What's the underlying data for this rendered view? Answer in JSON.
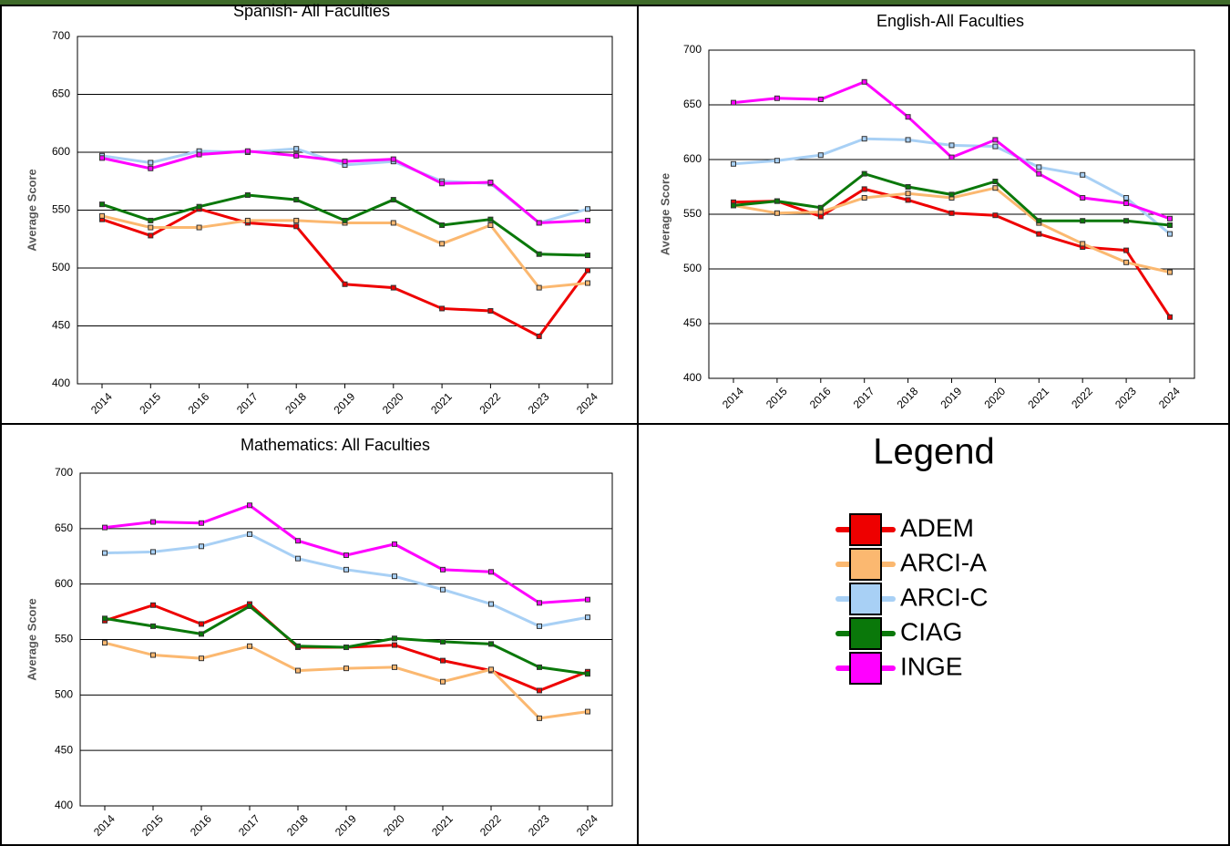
{
  "chart_data": [
    {
      "type": "line",
      "title": "Spanish- All Faculties",
      "y_label": "Average Score",
      "categories": [
        "2014",
        "2015",
        "2016",
        "2017",
        "2018",
        "2019",
        "2020",
        "2021",
        "2022",
        "2023",
        "2024"
      ],
      "ylim": [
        400,
        700
      ],
      "yticks": [
        400,
        450,
        500,
        550,
        600,
        650,
        700
      ],
      "grid": true,
      "series": [
        {
          "values": [
            542,
            528,
            551,
            539,
            536,
            486,
            483,
            465,
            463,
            441,
            498
          ]
        },
        {
          "values": [
            545,
            535,
            535,
            541,
            541,
            539,
            539,
            521,
            537,
            483,
            487
          ]
        },
        {
          "values": [
            597,
            591,
            601,
            600,
            603,
            589,
            592,
            575,
            573,
            539,
            551
          ]
        },
        {
          "values": [
            555,
            541,
            553,
            563,
            559,
            541,
            559,
            537,
            542,
            512,
            511
          ]
        },
        {
          "values": [
            595,
            586,
            598,
            601,
            597,
            592,
            594,
            573,
            574,
            539,
            541
          ]
        }
      ]
    },
    {
      "type": "line",
      "title": "English-All Faculties",
      "y_label": "Average Score",
      "categories": [
        "2014",
        "2015",
        "2016",
        "2017",
        "2018",
        "2019",
        "2020",
        "2021",
        "2022",
        "2023",
        "2024"
      ],
      "ylim": [
        400,
        700
      ],
      "yticks": [
        400,
        450,
        500,
        550,
        600,
        650,
        700
      ],
      "grid": true,
      "series": [
        {
          "values": [
            561,
            562,
            548,
            573,
            563,
            551,
            549,
            532,
            520,
            517,
            456
          ]
        },
        {
          "values": [
            558,
            551,
            552,
            565,
            569,
            565,
            574,
            542,
            523,
            506,
            497
          ]
        },
        {
          "values": [
            596,
            599,
            604,
            619,
            618,
            613,
            612,
            593,
            586,
            565,
            532
          ]
        },
        {
          "values": [
            558,
            562,
            556,
            587,
            575,
            568,
            580,
            544,
            544,
            544,
            540
          ]
        },
        {
          "values": [
            652,
            656,
            655,
            671,
            639,
            602,
            618,
            587,
            565,
            560,
            546
          ]
        }
      ]
    },
    {
      "type": "line",
      "title": "Mathematics: All Faculties",
      "y_label": "Average Score",
      "categories": [
        "2014",
        "2015",
        "2016",
        "2017",
        "2018",
        "2019",
        "2020",
        "2021",
        "2022",
        "2023",
        "2024"
      ],
      "ylim": [
        400,
        700
      ],
      "yticks": [
        400,
        450,
        500,
        550,
        600,
        650,
        700
      ],
      "grid": true,
      "series": [
        {
          "values": [
            567,
            581,
            564,
            582,
            543,
            543,
            545,
            531,
            522,
            504,
            521
          ]
        },
        {
          "values": [
            547,
            536,
            533,
            544,
            522,
            524,
            525,
            512,
            523,
            479,
            485
          ]
        },
        {
          "values": [
            628,
            629,
            634,
            645,
            623,
            613,
            607,
            595,
            582,
            562,
            570
          ]
        },
        {
          "values": [
            569,
            562,
            555,
            580,
            544,
            543,
            551,
            548,
            546,
            525,
            519
          ]
        },
        {
          "values": [
            651,
            656,
            655,
            671,
            639,
            626,
            636,
            613,
            611,
            583,
            586
          ]
        }
      ]
    }
  ],
  "legend": {
    "title": "Legend",
    "series": [
      {
        "name": "ADEM",
        "color": "#ee0000"
      },
      {
        "name": "ARCI-A",
        "color": "#fbb870"
      },
      {
        "name": "ARCI-C",
        "color": "#a8d0f5"
      },
      {
        "name": "CIAG",
        "color": "#0a780a"
      },
      {
        "name": "INGE",
        "color": "#ff00ff"
      }
    ]
  }
}
